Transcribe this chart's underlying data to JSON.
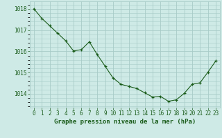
{
  "x": [
    0,
    1,
    2,
    3,
    4,
    5,
    6,
    7,
    8,
    9,
    10,
    11,
    12,
    13,
    14,
    15,
    16,
    17,
    18,
    19,
    20,
    21,
    22,
    23
  ],
  "y": [
    1018.0,
    1017.55,
    1017.2,
    1016.85,
    1016.5,
    1016.02,
    1016.08,
    1016.45,
    1015.85,
    1015.3,
    1014.75,
    1014.45,
    1014.35,
    1014.25,
    1014.05,
    1013.85,
    1013.88,
    1013.65,
    1013.72,
    1014.02,
    1014.45,
    1014.52,
    1015.02,
    1015.55
  ],
  "bg_color": "#ceeae6",
  "line_color": "#1a5c1a",
  "marker_color": "#1a5c1a",
  "grid_color": "#a8ccc8",
  "xlabel": "Graphe pression niveau de la mer (hPa)",
  "xlabel_color": "#1a5c1a",
  "tick_color": "#1a5c1a",
  "ytick_labels": [
    1014,
    1015,
    1016,
    1017,
    1018
  ],
  "ylim": [
    1013.35,
    1018.35
  ],
  "xlim": [
    -0.5,
    23.5
  ],
  "label_fontsize": 6.5,
  "tick_fontsize": 5.5
}
